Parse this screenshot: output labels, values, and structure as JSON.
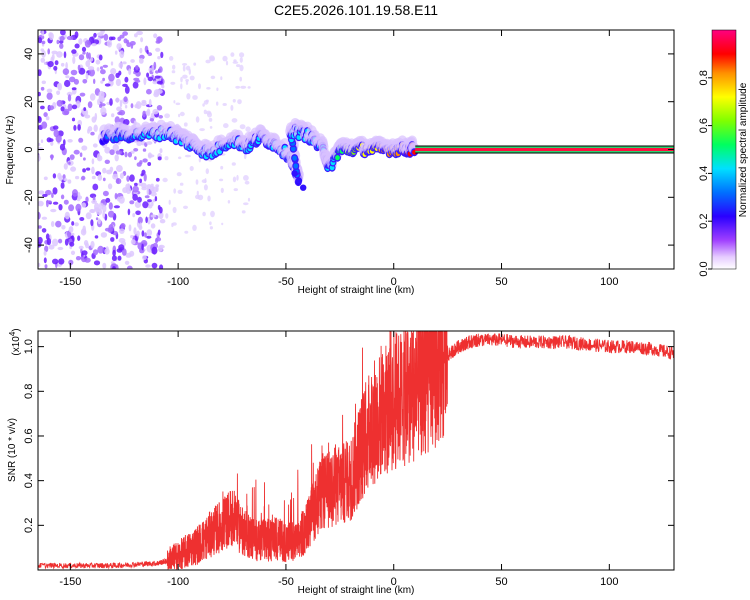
{
  "title": "C2E5.2026.101.19.58.E11",
  "chart_data": [
    {
      "type": "heatmap",
      "title": "C2E5.2026.101.19.58.E11",
      "xlabel": "Height of straight line (km)",
      "ylabel": "Frequency (Hz)",
      "xlim": [
        -165,
        130
      ],
      "ylim": [
        -50,
        50
      ],
      "xticks": [
        -150,
        -100,
        -50,
        0,
        50,
        100
      ],
      "yticks": [
        -40,
        -20,
        0,
        20,
        40
      ],
      "colorbar": {
        "label": "Normalized spectral amplitude",
        "range": [
          0,
          1
        ],
        "ticks": [
          "0.0",
          "0.2",
          "0.4",
          "0.6",
          "0.8"
        ],
        "tick_values": [
          0.0,
          0.2,
          0.4,
          0.6,
          0.8
        ],
        "colors": [
          "#ffffff",
          "#d9b8ff",
          "#8f3cff",
          "#3300ff",
          "#0060ff",
          "#00e0ff",
          "#00ff80",
          "#80ff00",
          "#ffff00",
          "#ff8000",
          "#ff0000",
          "#ff0080"
        ]
      },
      "trace": [
        {
          "x": -135,
          "f": 5,
          "a": 0.3
        },
        {
          "x": -125,
          "f": 6,
          "a": 0.4
        },
        {
          "x": -115,
          "f": 6,
          "a": 0.45
        },
        {
          "x": -105,
          "f": 7,
          "a": 0.45
        },
        {
          "x": -98,
          "f": 4,
          "a": 0.5
        },
        {
          "x": -92,
          "f": 1,
          "a": 0.5
        },
        {
          "x": -85,
          "f": -2,
          "a": 0.5
        },
        {
          "x": -75,
          "f": 4,
          "a": 0.45
        },
        {
          "x": -68,
          "f": 1,
          "a": 0.5
        },
        {
          "x": -62,
          "f": 5,
          "a": 0.45
        },
        {
          "x": -55,
          "f": 2,
          "a": 0.5
        },
        {
          "x": -48,
          "f": -3,
          "a": 0.4
        },
        {
          "x": -44,
          "f": -14,
          "a": 0.3
        },
        {
          "x": -48,
          "f": 8,
          "a": 0.45
        },
        {
          "x": -40,
          "f": 6,
          "a": 0.45
        },
        {
          "x": -33,
          "f": 0,
          "a": 0.5
        },
        {
          "x": -30,
          "f": -8,
          "a": 0.4
        },
        {
          "x": -25,
          "f": 0,
          "a": 0.6
        },
        {
          "x": -18,
          "f": 0,
          "a": 0.7
        },
        {
          "x": -10,
          "f": 0,
          "a": 0.8
        },
        {
          "x": -2,
          "f": 0,
          "a": 0.85
        },
        {
          "x": 5,
          "f": 0,
          "a": 0.9
        },
        {
          "x": 10,
          "f": 0,
          "a": 0.95
        },
        {
          "x": 130,
          "f": 0,
          "a": 1.0
        }
      ]
    },
    {
      "type": "line",
      "xlabel": "Height of straight line (km)",
      "ylabel": "SNR (10 * v/v)",
      "yscale_label": "(x10",
      "yscale_exponent": "4",
      "yscale_close": ")",
      "xlim": [
        -165,
        130
      ],
      "ylim": [
        0,
        1.07
      ],
      "xticks": [
        -150,
        -100,
        -50,
        0,
        50,
        100
      ],
      "yticks": [
        0.2,
        0.4,
        0.6,
        0.8,
        1.0
      ],
      "ytick_labels": [
        "0.2",
        "0.4",
        "0.6",
        "0.8",
        "1.0"
      ],
      "color": "#ee3030",
      "series": [
        {
          "name": "SNR",
          "x": [
            -165,
            -150,
            -140,
            -130,
            -120,
            -110,
            -105,
            -100,
            -95,
            -90,
            -85,
            -80,
            -75,
            -70,
            -65,
            -60,
            -55,
            -50,
            -45,
            -40,
            -35,
            -30,
            -25,
            -20,
            -15,
            -10,
            -5,
            0,
            5,
            10,
            15,
            20,
            25,
            30,
            35,
            40,
            50,
            60,
            70,
            80,
            90,
            100,
            110,
            120,
            130
          ],
          "y": [
            0.02,
            0.02,
            0.02,
            0.02,
            0.025,
            0.03,
            0.04,
            0.06,
            0.09,
            0.12,
            0.16,
            0.2,
            0.24,
            0.17,
            0.14,
            0.13,
            0.14,
            0.13,
            0.12,
            0.2,
            0.32,
            0.36,
            0.38,
            0.4,
            0.55,
            0.65,
            0.7,
            0.75,
            0.78,
            0.82,
            0.86,
            0.9,
            0.96,
            1.0,
            1.02,
            1.03,
            1.03,
            1.02,
            1.02,
            1.02,
            1.01,
            1.0,
            1.0,
            0.99,
            0.97
          ]
        }
      ]
    }
  ]
}
